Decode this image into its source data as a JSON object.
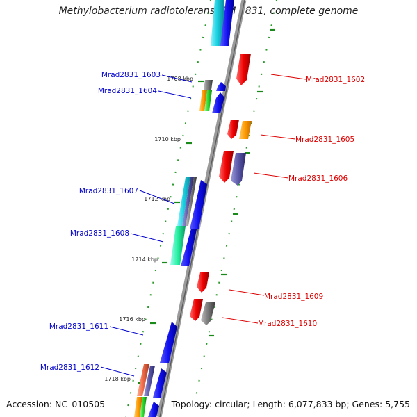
{
  "title": "Methylobacterium radiotolerans JCM 2831, complete genome",
  "accession": "Accession: NC_010505",
  "summary": "Topology: circular; Length: 6,077,833 bp; Genes: 5,755",
  "colors": {
    "left_label": "#0000cc",
    "right_label": "#dd0000",
    "tick": "#1a8a1a",
    "backbone": "#8c8c8c"
  },
  "scale_labels": [
    "1708 kbp",
    "1710 kbp",
    "1712 kbp",
    "1714 kbp",
    "1716 kbp",
    "1718 kbp"
  ],
  "left_genes": [
    "Mrad2831_1603",
    "Mrad2831_1604",
    "Mrad2831_1607",
    "Mrad2831_1608",
    "Mrad2831_1611",
    "Mrad2831_1612"
  ],
  "right_genes": [
    "Mrad2831_1602",
    "Mrad2831_1605",
    "Mrad2831_1606",
    "Mrad2831_1609",
    "Mrad2831_1610"
  ]
}
